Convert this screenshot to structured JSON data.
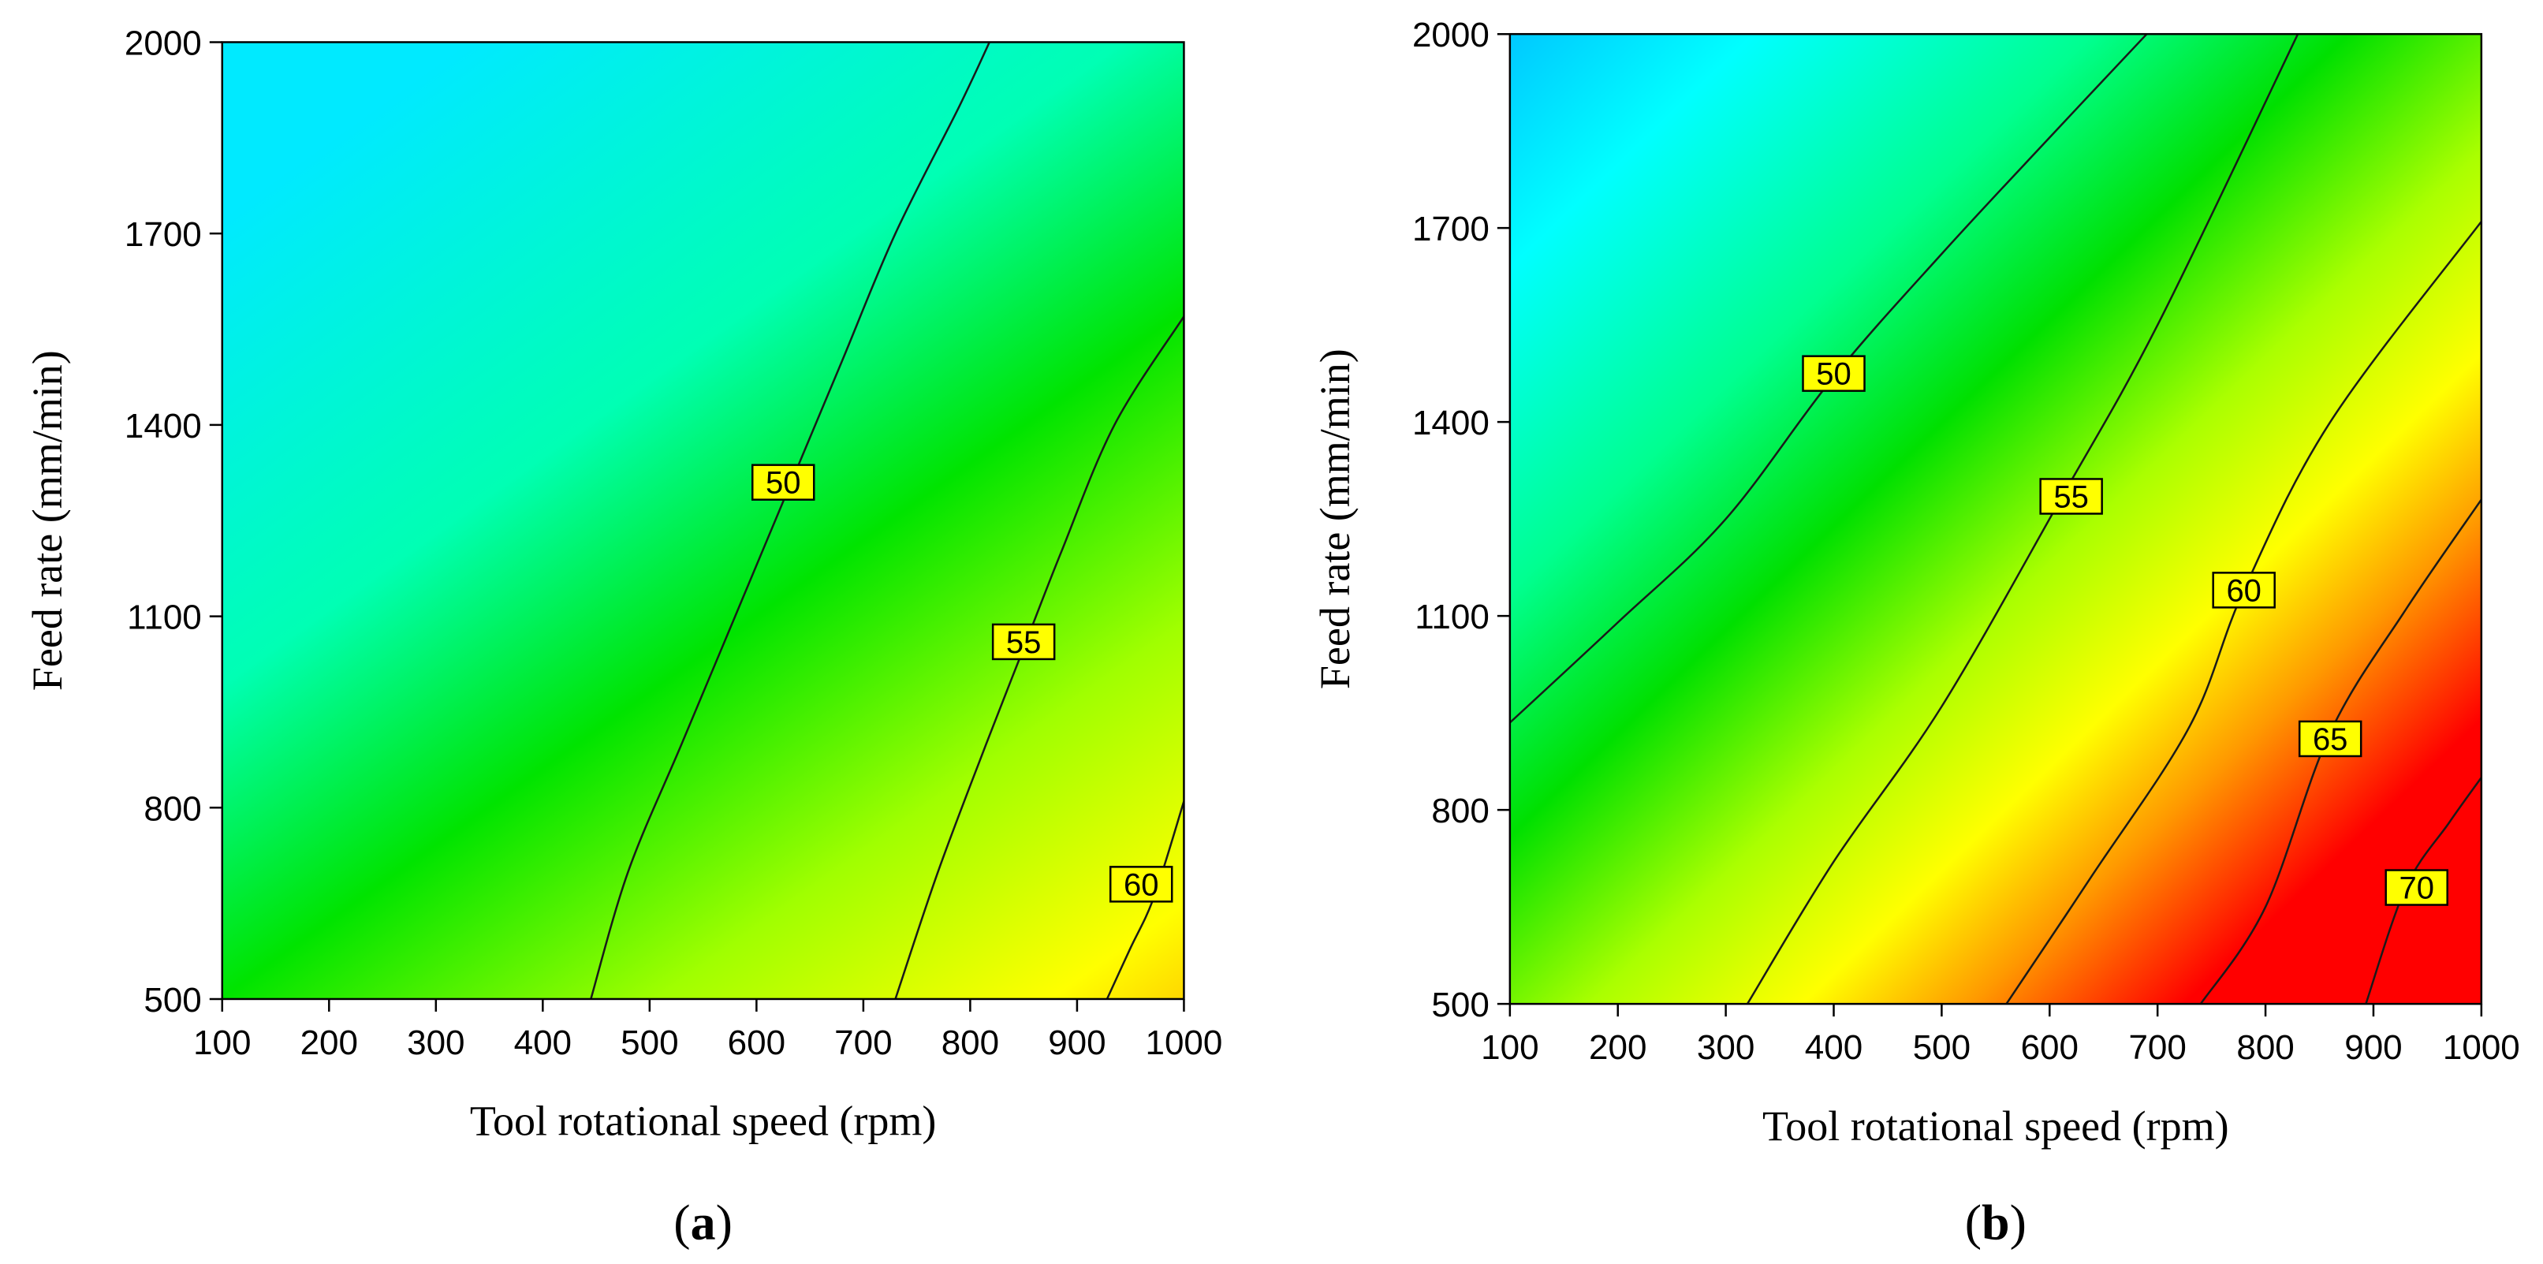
{
  "chart_data": [
    {
      "type": "contour",
      "panel_label": "a",
      "xlabel": "Tool rotational speed (rpm)",
      "ylabel": "Feed rate (mm/min)",
      "xlim": [
        100,
        1000
      ],
      "ylim": [
        500,
        2000
      ],
      "xticks": [
        100,
        200,
        300,
        400,
        500,
        600,
        700,
        800,
        900,
        1000
      ],
      "yticks": [
        500,
        800,
        1100,
        1400,
        1700,
        2000
      ],
      "colors": {
        "low": "#00ffff",
        "mid_low": "#00ff99",
        "mid": "#00e600",
        "mid_high": "#ffff00",
        "high": "#ffaa00",
        "max": "#ff0000",
        "label_fill": "#ffff00"
      },
      "contours": [
        {
          "level": "50",
          "points": [
            [
              445,
              500
            ],
            [
              480,
              700
            ],
            [
              530,
              900
            ],
            [
              580,
              1100
            ],
            [
              630,
              1300
            ],
            [
              680,
              1500
            ],
            [
              730,
              1700
            ],
            [
              790,
              1900
            ],
            [
              818,
              2000
            ]
          ],
          "label_at": [
            625,
            1310
          ]
        },
        {
          "level": "55",
          "points": [
            [
              730,
              500
            ],
            [
              770,
              700
            ],
            [
              815,
              900
            ],
            [
              850,
              1050
            ],
            [
              885,
              1200
            ],
            [
              935,
              1400
            ],
            [
              1000,
              1570
            ]
          ],
          "label_at": [
            850,
            1060
          ]
        },
        {
          "level": "60",
          "points": [
            [
              928,
              500
            ],
            [
              950,
              580
            ],
            [
              972,
              660
            ],
            [
              1000,
              810
            ]
          ],
          "label_at": [
            960,
            680
          ]
        }
      ],
      "gradient": {
        "colors": [
          "#00eaff",
          "#00ffb4",
          "#00e400",
          "#a0ff00",
          "#ffff00",
          "#ffb000"
        ],
        "offsets": [
          0,
          0.3,
          0.5,
          0.7,
          0.88,
          1.0
        ],
        "from": [
          330,
          2000
        ],
        "to": [
          1020,
          380
        ]
      }
    },
    {
      "type": "contour",
      "panel_label": "b",
      "xlabel": "Tool rotational speed (rpm)",
      "ylabel": "Feed rate (mm/min)",
      "xlim": [
        100,
        1000
      ],
      "ylim": [
        500,
        2000
      ],
      "xticks": [
        100,
        200,
        300,
        400,
        500,
        600,
        700,
        800,
        900,
        1000
      ],
      "yticks": [
        500,
        800,
        1100,
        1400,
        1700,
        2000
      ],
      "colors": {
        "low": "#00bfff",
        "mid_low": "#00ffff",
        "mid": "#00e600",
        "mid_high": "#ffff00",
        "high": "#ffaa00",
        "max": "#ff0000",
        "label_fill": "#ffff00"
      },
      "contours": [
        {
          "level": "50",
          "points": [
            [
              100,
              935
            ],
            [
              200,
              1090
            ],
            [
              300,
              1250
            ],
            [
              400,
              1470
            ],
            [
              500,
              1660
            ],
            [
              600,
              1840
            ],
            [
              690,
              2000
            ]
          ],
          "label_at": [
            400,
            1475
          ]
        },
        {
          "level": "55",
          "points": [
            [
              320,
              500
            ],
            [
              400,
              720
            ],
            [
              500,
              960
            ],
            [
              610,
              1280
            ],
            [
              700,
              1550
            ],
            [
              830,
              2000
            ]
          ],
          "label_at": [
            620,
            1285
          ]
        },
        {
          "level": "60",
          "points": [
            [
              560,
              500
            ],
            [
              640,
              700
            ],
            [
              730,
              930
            ],
            [
              780,
              1140
            ],
            [
              860,
              1400
            ],
            [
              1000,
              1710
            ]
          ],
          "label_at": [
            780,
            1140
          ]
        },
        {
          "level": "65",
          "points": [
            [
              740,
              500
            ],
            [
              800,
              650
            ],
            [
              860,
              920
            ],
            [
              930,
              1110
            ],
            [
              1000,
              1280
            ]
          ],
          "label_at": [
            860,
            910
          ]
        },
        {
          "level": "70",
          "points": [
            [
              893,
              500
            ],
            [
              930,
              680
            ],
            [
              970,
              780
            ],
            [
              1000,
              850
            ]
          ],
          "label_at": [
            940,
            680
          ]
        }
      ],
      "gradient": {
        "colors": [
          "#00aaff",
          "#00ffff",
          "#00ff90",
          "#00e000",
          "#aaff00",
          "#ffff00",
          "#ff9900",
          "#ff0000",
          "#ff0000"
        ],
        "offsets": [
          0,
          0.18,
          0.34,
          0.46,
          0.58,
          0.68,
          0.76,
          0.86,
          1.0
        ],
        "from": [
          60,
          2140
        ],
        "to": [
          1000,
          500
        ]
      }
    }
  ]
}
